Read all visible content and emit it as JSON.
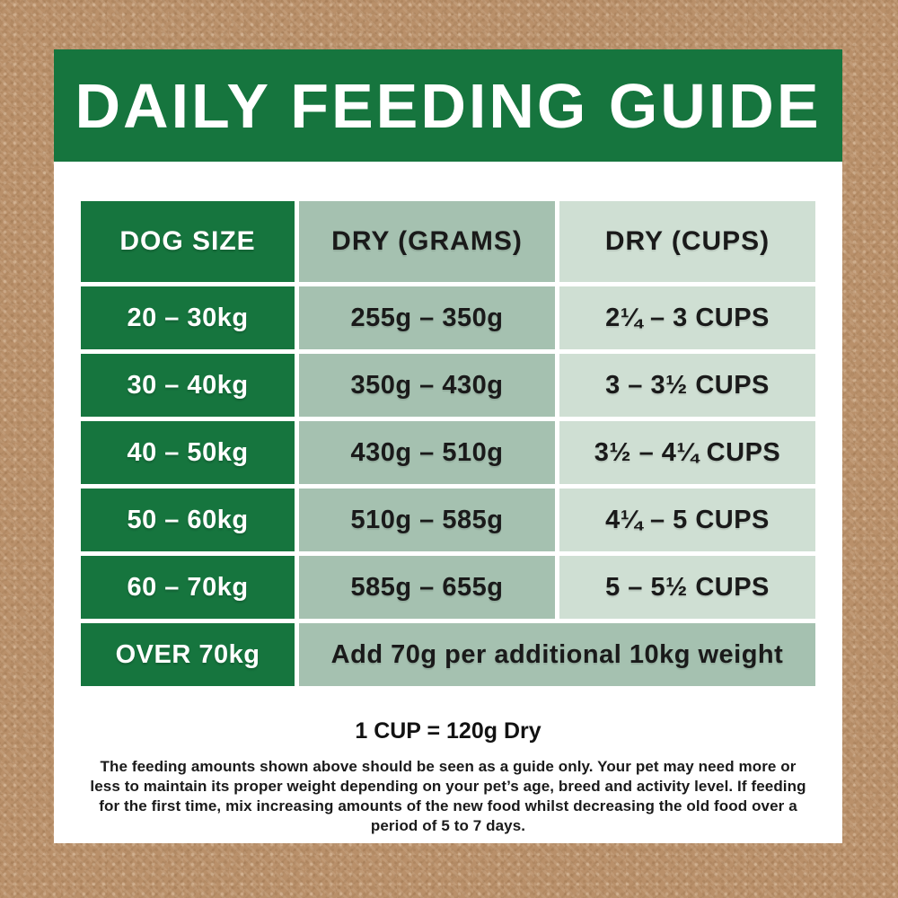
{
  "header": {
    "title": "DAILY FEEDING GUIDE"
  },
  "table": {
    "columns": [
      "DOG SIZE",
      "DRY (GRAMS)",
      "DRY (CUPS)"
    ],
    "rows": [
      {
        "dog_size": "20 – 30kg",
        "dry_grams": "255g – 350g",
        "dry_cups": "2¼ – 3 CUPS"
      },
      {
        "dog_size": "30 – 40kg",
        "dry_grams": "350g – 430g",
        "dry_cups": "3 – 3½ CUPS"
      },
      {
        "dog_size": "40 – 50kg",
        "dry_grams": "430g – 510g",
        "dry_cups": "3½ – 4¼ CUPS"
      },
      {
        "dog_size": "50 – 60kg",
        "dry_grams": "510g – 585g",
        "dry_cups": "4¼ – 5 CUPS"
      },
      {
        "dog_size": "60 – 70kg",
        "dry_grams": "585g – 655g",
        "dry_cups": "5 – 5½ CUPS"
      }
    ],
    "footer_row": {
      "dog_size": "OVER 70kg",
      "note": "Add 70g per additional 10kg weight"
    }
  },
  "footnote": {
    "cup_equivalence": "1 CUP = 120g Dry",
    "disclaimer": "The feeding amounts shown above should be seen as a guide only. Your pet may need more or less to maintain its proper weight depending on your pet’s age, breed and activity level. If feeding for the first time, mix increasing amounts of the new food whilst decreasing the old food over a period of 5 to 7 days."
  },
  "colors": {
    "brand_green": "#16753e",
    "sage_medium": "#a5c1b0",
    "sage_light": "#cfdfd3",
    "background_brown": "#b9906a",
    "panel_white": "#ffffff",
    "text_dark": "#1a1a1a"
  }
}
